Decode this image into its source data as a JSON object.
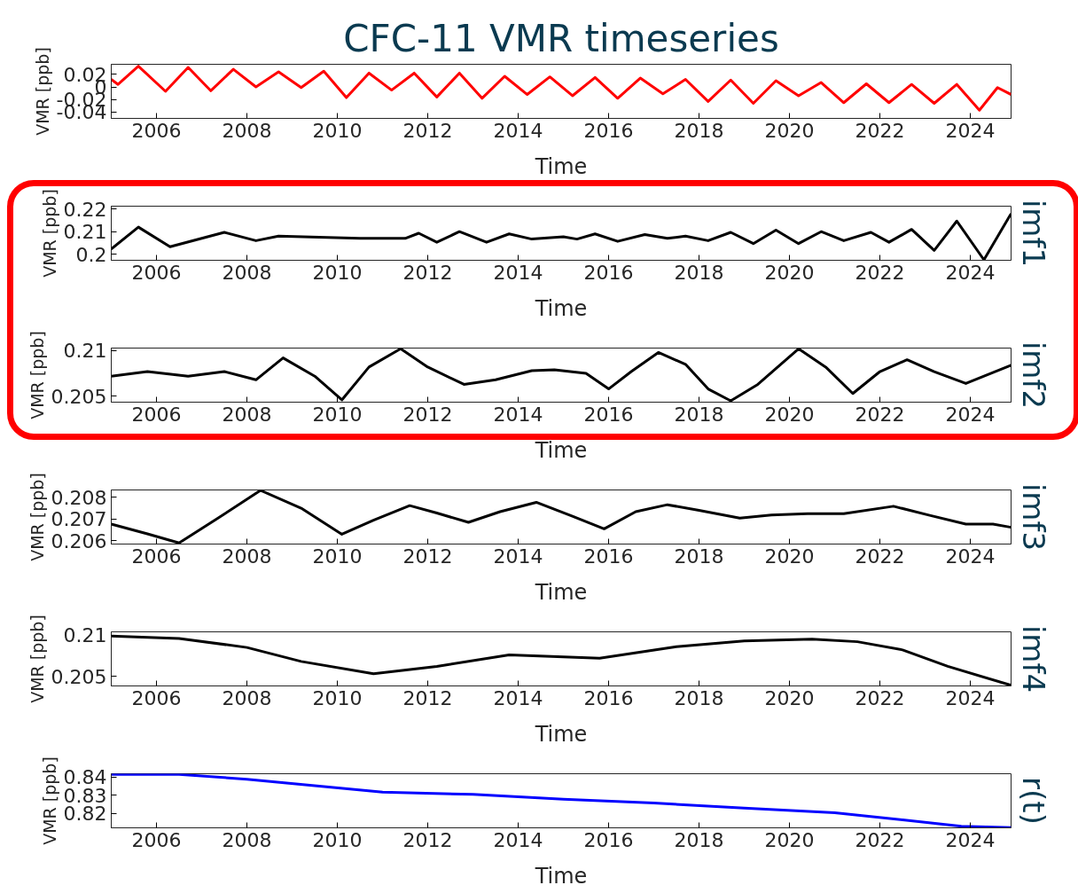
{
  "chart_data": [
    {
      "type": "line",
      "title": "CFC-11 VMR timeseries",
      "xlabel": "Time",
      "ylabel": "VMR [ppb]",
      "xlim": [
        2005,
        2024.9
      ],
      "xticks": [
        2006,
        2008,
        2010,
        2012,
        2014,
        2016,
        2018,
        2020,
        2022,
        2024
      ],
      "ylim": [
        -0.05,
        0.036
      ],
      "yticks": [
        -0.04,
        -0.02,
        0,
        0.02
      ],
      "x": [
        2005.0,
        2005.15,
        2005.6,
        2006.2,
        2006.7,
        2007.2,
        2007.7,
        2008.2,
        2008.7,
        2009.2,
        2009.7,
        2010.2,
        2010.7,
        2011.2,
        2011.7,
        2012.2,
        2012.7,
        2013.2,
        2013.7,
        2014.2,
        2014.7,
        2015.2,
        2015.7,
        2016.2,
        2016.7,
        2017.2,
        2017.7,
        2018.2,
        2018.7,
        2019.2,
        2019.7,
        2020.2,
        2020.7,
        2021.2,
        2021.7,
        2022.2,
        2022.7,
        2023.2,
        2023.7,
        2024.2,
        2024.6,
        2024.9
      ],
      "series": [
        {
          "color": "#ff0000",
          "values": [
            0.012,
            0.004,
            0.033,
            -0.007,
            0.031,
            -0.006,
            0.028,
            0.0,
            0.024,
            -0.001,
            0.025,
            -0.017,
            0.022,
            -0.005,
            0.022,
            -0.016,
            0.022,
            -0.018,
            0.017,
            -0.012,
            0.016,
            -0.014,
            0.015,
            -0.018,
            0.014,
            -0.011,
            0.012,
            -0.023,
            0.011,
            -0.026,
            0.01,
            -0.014,
            0.007,
            -0.025,
            0.005,
            -0.025,
            0.004,
            -0.026,
            0.004,
            -0.037,
            -0.001,
            -0.012
          ]
        }
      ]
    },
    {
      "type": "line",
      "xlabel": "Time",
      "ylabel": "VMR [ppb]",
      "y2label": "imf1",
      "xlim": [
        2005,
        2024.9
      ],
      "xticks": [
        2006,
        2008,
        2010,
        2012,
        2014,
        2016,
        2018,
        2020,
        2022,
        2024
      ],
      "ylim": [
        0.1973,
        0.2213
      ],
      "yticks": [
        0.2,
        0.21,
        0.22
      ],
      "x": [
        2005.0,
        2005.6,
        2006.3,
        2007.5,
        2008.2,
        2008.7,
        2010.5,
        2011.5,
        2011.8,
        2012.2,
        2012.7,
        2013.3,
        2013.8,
        2014.3,
        2015.0,
        2015.3,
        2015.7,
        2016.2,
        2016.8,
        2017.3,
        2017.7,
        2018.2,
        2018.7,
        2019.2,
        2019.7,
        2020.2,
        2020.7,
        2021.2,
        2021.8,
        2022.2,
        2022.7,
        2023.2,
        2023.7,
        2024.3,
        2024.9
      ],
      "series": [
        {
          "color": "#000000",
          "values": [
            0.2023,
            0.212,
            0.2033,
            0.2097,
            0.206,
            0.208,
            0.207,
            0.207,
            0.2093,
            0.2053,
            0.21,
            0.2053,
            0.209,
            0.2067,
            0.2077,
            0.2067,
            0.209,
            0.2057,
            0.2087,
            0.207,
            0.208,
            0.206,
            0.2097,
            0.2047,
            0.2107,
            0.2047,
            0.21,
            0.206,
            0.2097,
            0.2053,
            0.211,
            0.2017,
            0.2147,
            0.1975,
            0.218
          ]
        }
      ]
    },
    {
      "type": "line",
      "xlabel": "Time",
      "ylabel": "VMR [ppb]",
      "y2label": "imf2",
      "xlim": [
        2005,
        2024.9
      ],
      "xticks": [
        2006,
        2008,
        2010,
        2012,
        2014,
        2016,
        2018,
        2020,
        2022,
        2024
      ],
      "ylim": [
        0.20435,
        0.21028
      ],
      "yticks": [
        0.205,
        0.21
      ],
      "x": [
        2005.0,
        2005.8,
        2006.7,
        2007.5,
        2008.2,
        2008.8,
        2009.5,
        2010.1,
        2010.7,
        2011.4,
        2012.0,
        2012.8,
        2013.5,
        2014.3,
        2014.8,
        2015.5,
        2016.0,
        2016.5,
        2017.1,
        2017.7,
        2018.2,
        2018.7,
        2019.3,
        2020.2,
        2020.8,
        2021.4,
        2022.0,
        2022.6,
        2023.2,
        2023.9,
        2024.9
      ],
      "series": [
        {
          "color": "#000000",
          "values": [
            0.2072,
            0.2077,
            0.2072,
            0.2077,
            0.2068,
            0.2092,
            0.2072,
            0.2046,
            0.2082,
            0.2102,
            0.2082,
            0.2063,
            0.2068,
            0.2078,
            0.2079,
            0.2075,
            0.2058,
            0.2077,
            0.2098,
            0.2085,
            0.2058,
            0.2045,
            0.2063,
            0.2102,
            0.2082,
            0.2053,
            0.2077,
            0.209,
            0.2077,
            0.2064,
            0.2084
          ]
        }
      ]
    },
    {
      "type": "line",
      "xlabel": "Time",
      "ylabel": "VMR [ppb]",
      "y2label": "imf3",
      "xlim": [
        2005,
        2024.9
      ],
      "xticks": [
        2006,
        2008,
        2010,
        2012,
        2014,
        2016,
        2018,
        2020,
        2022,
        2024
      ],
      "ylim": [
        0.20585,
        0.20834
      ],
      "yticks": [
        0.206,
        0.207,
        0.208
      ],
      "x": [
        2005.0,
        2005.8,
        2006.5,
        2007.3,
        2008.3,
        2009.2,
        2010.1,
        2010.8,
        2011.6,
        2012.2,
        2012.9,
        2013.6,
        2014.4,
        2015.2,
        2015.9,
        2016.6,
        2017.3,
        2018.0,
        2018.9,
        2019.6,
        2020.4,
        2021.2,
        2022.3,
        2023.1,
        2023.9,
        2024.5,
        2024.9
      ],
      "series": [
        {
          "color": "#000000",
          "values": [
            0.20677,
            0.20632,
            0.2059,
            0.20696,
            0.20832,
            0.2075,
            0.2063,
            0.20695,
            0.20762,
            0.20728,
            0.20685,
            0.20734,
            0.20777,
            0.20713,
            0.20655,
            0.20734,
            0.20766,
            0.2074,
            0.20704,
            0.20719,
            0.20725,
            0.20725,
            0.20759,
            0.20717,
            0.20677,
            0.20677,
            0.20662
          ]
        }
      ]
    },
    {
      "type": "line",
      "xlabel": "Time",
      "ylabel": "VMR [ppb]",
      "y2label": "imf4",
      "xlim": [
        2005,
        2024.9
      ],
      "xticks": [
        2006,
        2008,
        2010,
        2012,
        2014,
        2016,
        2018,
        2020,
        2022,
        2024
      ],
      "ylim": [
        0.20382,
        0.2104
      ],
      "yticks": [
        0.205,
        0.21
      ],
      "x": [
        2005.0,
        2006.5,
        2008.0,
        2009.2,
        2010.8,
        2012.2,
        2013.8,
        2015.8,
        2017.5,
        2019.0,
        2020.5,
        2021.5,
        2022.5,
        2023.5,
        2024.9
      ],
      "series": [
        {
          "color": "#000000",
          "values": [
            0.2099,
            0.2096,
            0.2085,
            0.2068,
            0.2053,
            0.2062,
            0.2076,
            0.2072,
            0.2086,
            0.2093,
            0.2095,
            0.2092,
            0.2082,
            0.2062,
            0.2039
          ]
        }
      ]
    },
    {
      "type": "line",
      "xlabel": "Time",
      "ylabel": "VMR [ppb]",
      "y2label": "r(t)",
      "xlim": [
        2005,
        2024.9
      ],
      "xticks": [
        2006,
        2008,
        2010,
        2012,
        2014,
        2016,
        2018,
        2020,
        2022,
        2024
      ],
      "ylim": [
        0.8122,
        0.8417
      ],
      "yticks": [
        0.82,
        0.83,
        0.84
      ],
      "x": [
        2005.0,
        2006.5,
        2008.0,
        2009.5,
        2011.0,
        2013.0,
        2015.0,
        2017.0,
        2019.0,
        2021.0,
        2022.5,
        2023.8,
        2024.9
      ],
      "series": [
        {
          "color": "#0000ff",
          "values": [
            0.8413,
            0.8413,
            0.8387,
            0.8352,
            0.8317,
            0.8304,
            0.8278,
            0.8257,
            0.823,
            0.8204,
            0.8165,
            0.813,
            0.8123
          ]
        }
      ]
    }
  ]
}
